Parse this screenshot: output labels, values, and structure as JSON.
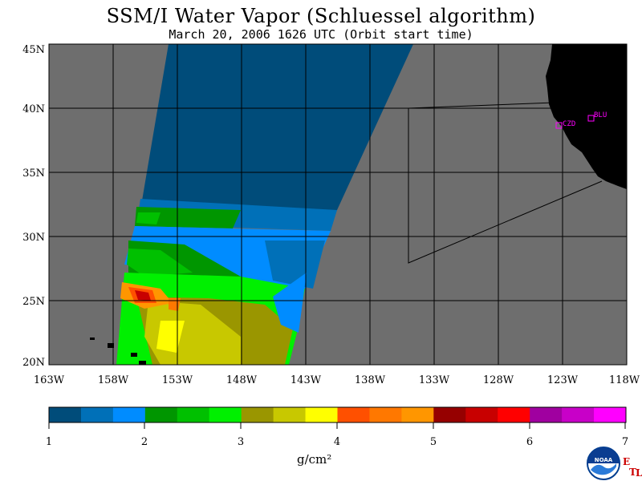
{
  "title": "SSM/I Water Vapor (Schluessel algorithm)",
  "subtitle": "March 20, 2006  1626 UTC  (Orbit start time)",
  "lat_labels": [
    "45N",
    "40N",
    "35N",
    "30N",
    "25N",
    "20N"
  ],
  "lon_labels": [
    "163W",
    "158W",
    "153W",
    "148W",
    "143W",
    "138W",
    "133W",
    "128W",
    "123W",
    "118W"
  ],
  "sites": [
    {
      "name": "CZD",
      "label": "CZD"
    },
    {
      "name": "BLU",
      "label": "BLU"
    }
  ],
  "colorbar": {
    "ticks": [
      "1",
      "2",
      "3",
      "4",
      "5",
      "6",
      "7"
    ],
    "units": "g/cm²",
    "colors": [
      "#004c7a",
      "#0070b8",
      "#008cff",
      "#009600",
      "#00c000",
      "#00f000",
      "#9a9600",
      "#c8c800",
      "#ffff00",
      "#ff5000",
      "#ff7800",
      "#ff9600",
      "#960000",
      "#c80000",
      "#ff0000",
      "#a000a0",
      "#c800c8",
      "#ff00ff"
    ]
  },
  "colors": {
    "background_ocean": "#6e6e6e",
    "land": "#000000",
    "grid": "#000000",
    "site_marker": "#ff00ff"
  },
  "logo": {
    "text": "NOAA",
    "etl": [
      "E",
      "T",
      "L"
    ]
  }
}
